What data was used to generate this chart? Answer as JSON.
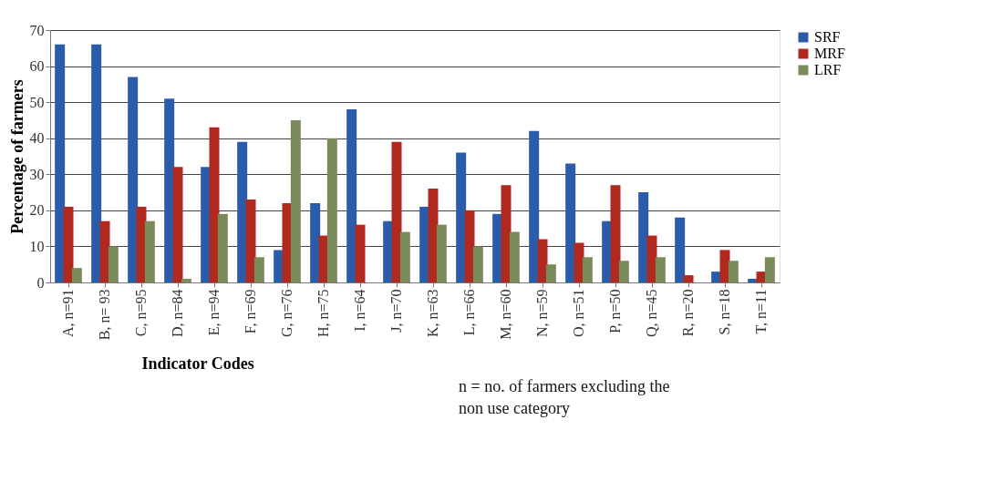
{
  "chart_data": {
    "type": "bar",
    "ylabel": "Percentage of farmers",
    "xlabel": "Indicator Codes",
    "annotations": [
      "n = no. of farmers excluding the non use category"
    ],
    "categories": [
      "A, n=91",
      "B, n= 93",
      "C, n=95",
      "D, n=84",
      "E, n=94",
      "F, n=69",
      "G, n=76",
      "H, n=75",
      "I, n=64",
      "J, n=70",
      "K, n=63",
      "L, n=66",
      "M, n=60",
      "N, n=59",
      "O, n=51",
      "P, n=50",
      "Q, n=45",
      "R, n=20",
      "S, n=18",
      "T, n=11"
    ],
    "series": [
      {
        "name": "SRF",
        "color": "#2a5caa",
        "values": [
          66,
          66,
          57,
          51,
          32,
          39,
          9,
          22,
          48,
          17,
          21,
          36,
          19,
          42,
          33,
          17,
          25,
          18,
          3,
          1
        ]
      },
      {
        "name": "MRF",
        "color": "#b0281e",
        "values": [
          21,
          17,
          21,
          32,
          43,
          23,
          22,
          13,
          16,
          39,
          26,
          20,
          27,
          12,
          11,
          27,
          13,
          2,
          9,
          3
        ]
      },
      {
        "name": "LRF",
        "color": "#7a8a5a",
        "values": [
          4,
          10,
          17,
          1,
          19,
          7,
          45,
          40,
          0,
          14,
          16,
          10,
          14,
          5,
          7,
          6,
          7,
          0,
          6,
          7
        ]
      }
    ],
    "ylim": [
      0,
      70
    ],
    "yticks": [
      0,
      10,
      20,
      30,
      40,
      50,
      60,
      70
    ],
    "grid": "y",
    "legend": "right"
  }
}
